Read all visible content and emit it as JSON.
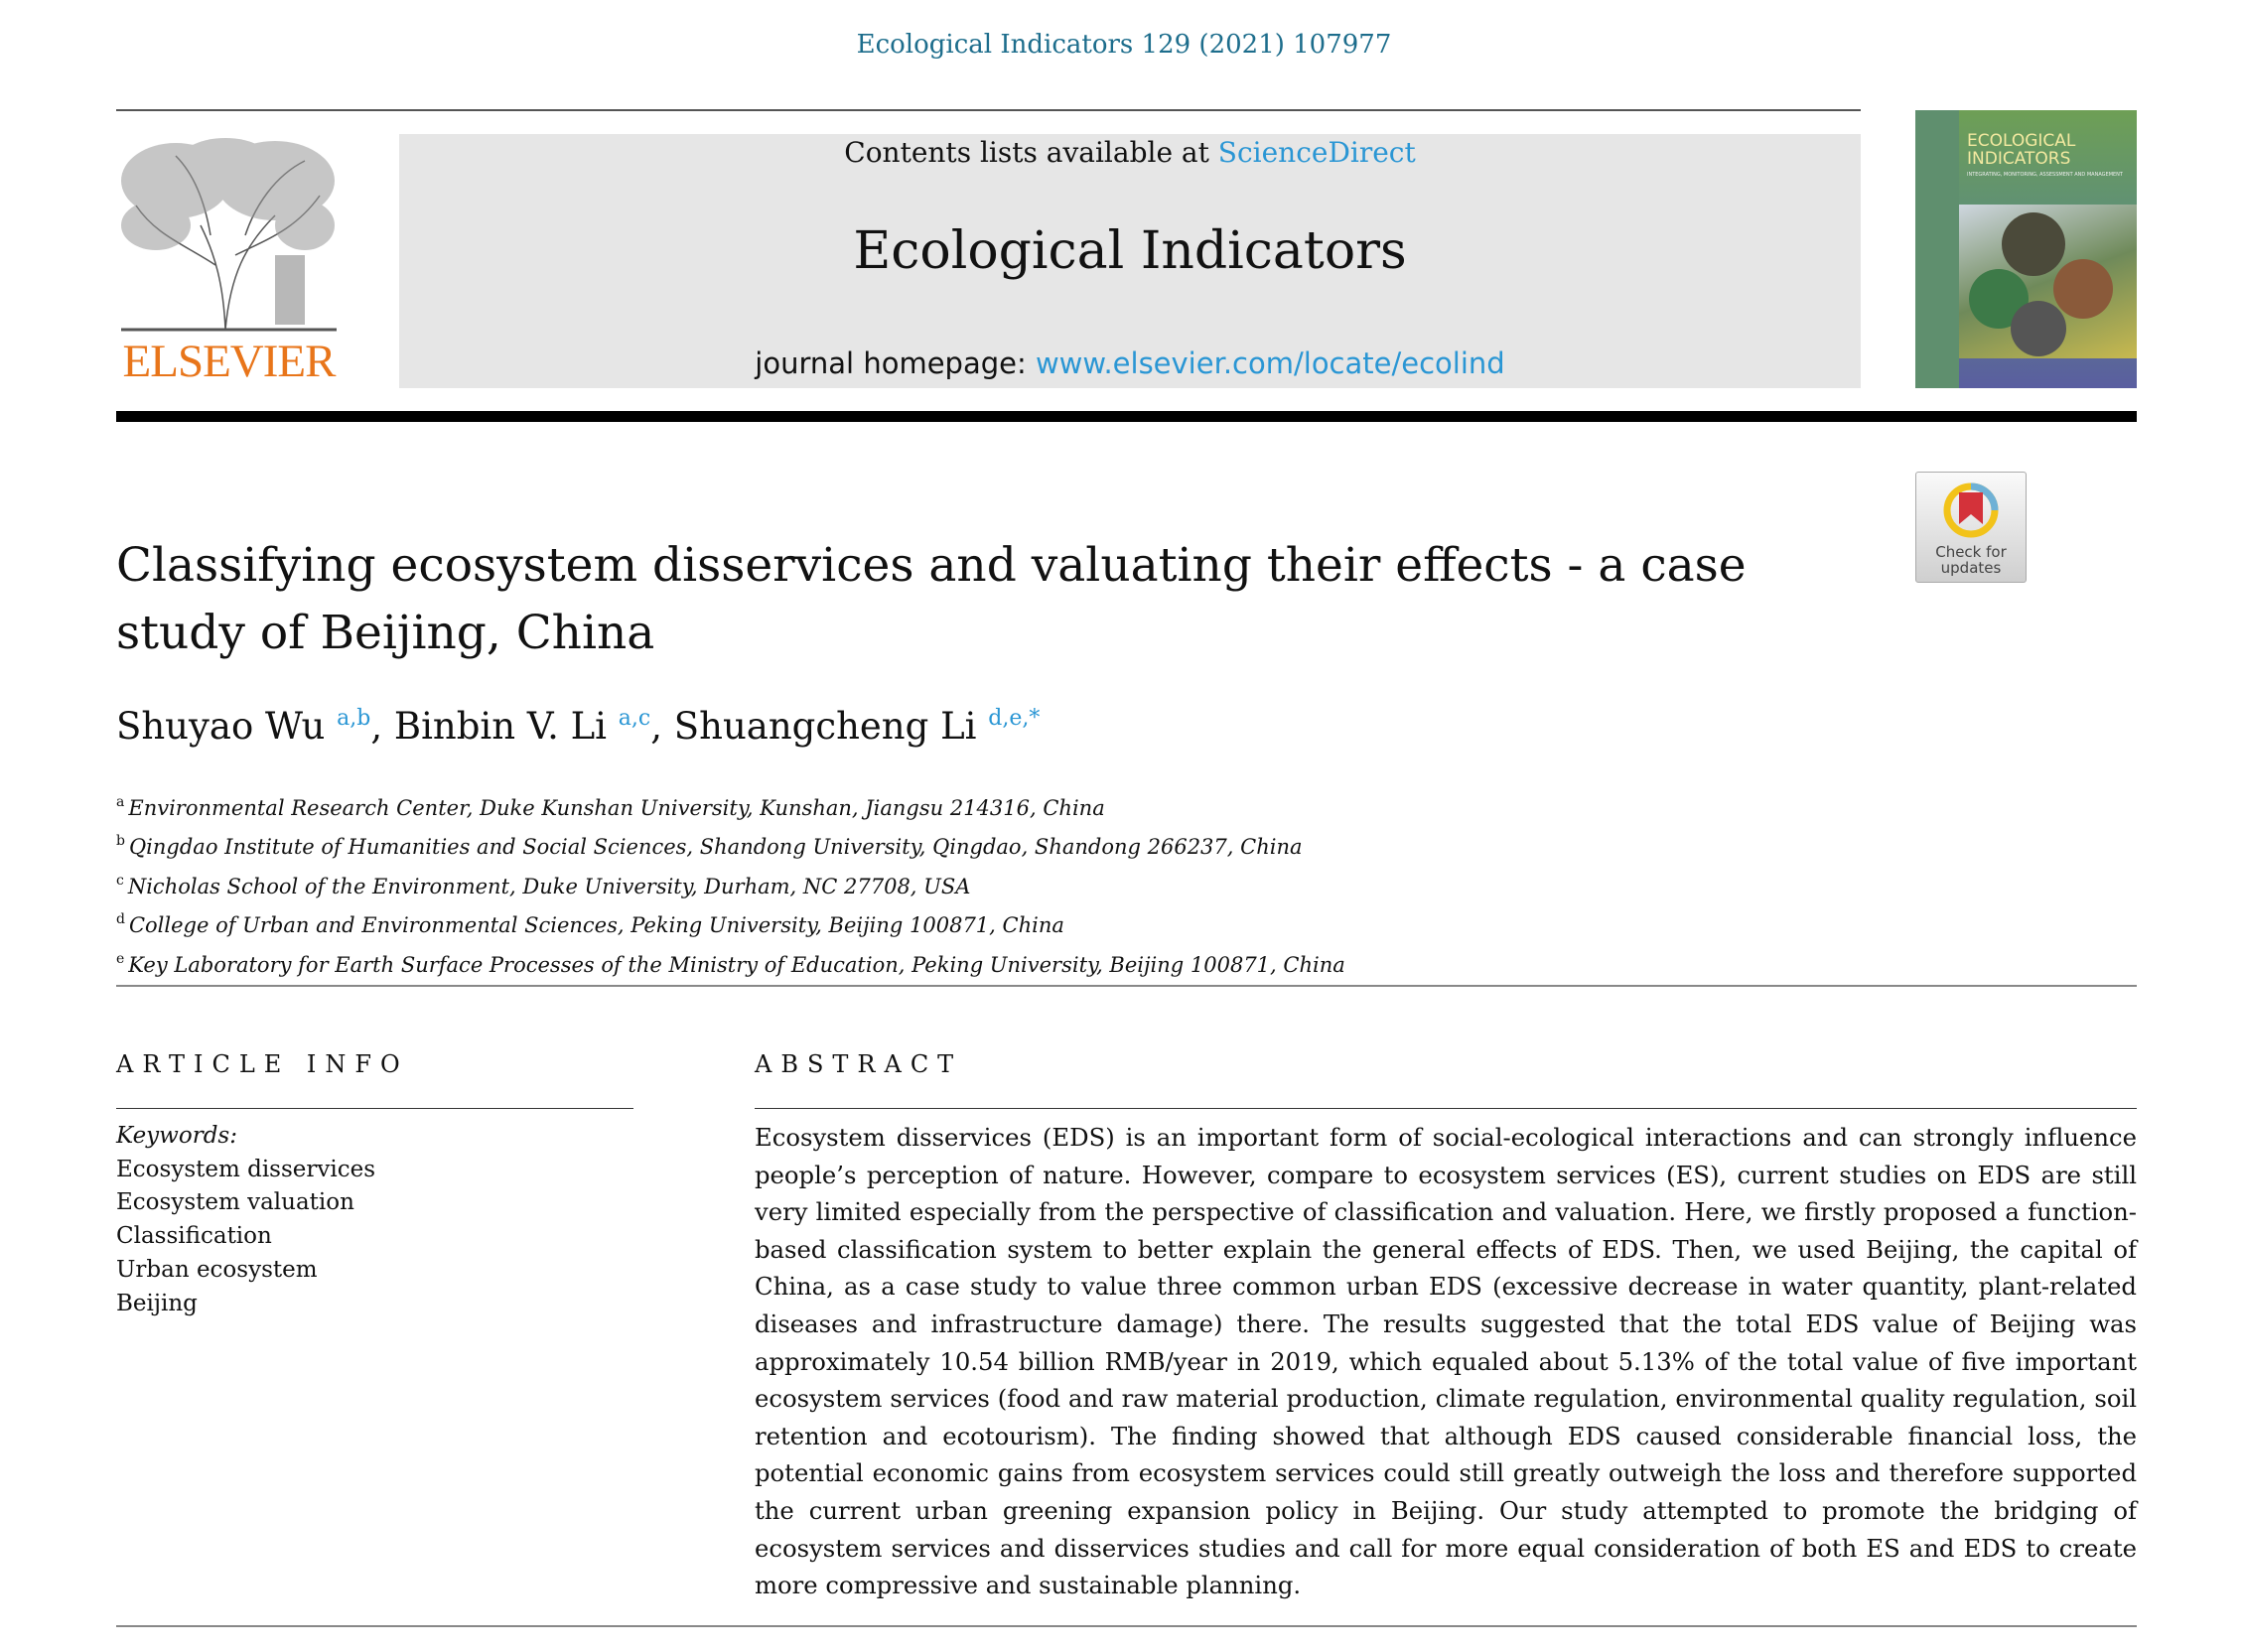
{
  "citation": "Ecological Indicators 129 (2021) 107977",
  "publisher_logo": "ELSEVIER",
  "banner": {
    "contents_prefix": "Contents lists available at ",
    "contents_link": "ScienceDirect",
    "journal_title": "Ecological Indicators",
    "homepage_prefix": "journal homepage: ",
    "homepage_link": "www.elsevier.com/locate/ecolind"
  },
  "cover": {
    "title": "ECOLOGICAL INDICATORS",
    "subtitle": "INTEGRATING, MONITORING, ASSESSMENT AND MANAGEMENT"
  },
  "check_updates": {
    "label": "Check for updates"
  },
  "article": {
    "title": "Classifying ecosystem disservices and valuating their effects - a case study of Beijing, China",
    "authors": [
      {
        "name": "Shuyao Wu",
        "sup": "a,b",
        "sep": ", "
      },
      {
        "name": "Binbin V. Li",
        "sup": "a,c",
        "sep": ", "
      },
      {
        "name": "Shuangcheng Li",
        "sup": "d,e,*",
        "sep": ""
      }
    ],
    "affiliations": [
      {
        "mark": "a",
        "text": "Environmental Research Center, Duke Kunshan University, Kunshan, Jiangsu 214316, China"
      },
      {
        "mark": "b",
        "text": "Qingdao Institute of Humanities and Social Sciences, Shandong University, Qingdao, Shandong 266237, China"
      },
      {
        "mark": "c",
        "text": "Nicholas School of the Environment, Duke University, Durham, NC 27708, USA"
      },
      {
        "mark": "d",
        "text": "College of Urban and Environmental Sciences, Peking University, Beijing 100871, China"
      },
      {
        "mark": "e",
        "text": "Key Laboratory for Earth Surface Processes of the Ministry of Education, Peking University, Beijing 100871, China"
      }
    ]
  },
  "article_info": {
    "heading": "ARTICLE INFO",
    "keywords_label": "Keywords:",
    "keywords": [
      "Ecosystem disservices",
      "Ecosystem valuation",
      "Classification",
      "Urban ecosystem",
      "Beijing"
    ]
  },
  "abstract": {
    "heading": "ABSTRACT",
    "text": "Ecosystem disservices (EDS) is an important form of social-ecological interactions and can strongly influence people’s perception of nature. However, compare to ecosystem services (ES), current studies on EDS are still very limited especially from the perspective of classification and valuation. Here, we firstly proposed a function-based classification system to better explain the general effects of EDS. Then, we used Beijing, the capital of China, as a case study to value three common urban EDS (excessive decrease in water quantity, plant-related diseases and infrastructure damage) there. The results suggested that the total EDS value of Beijing was approximately 10.54 billion RMB/year in 2019, which equaled about 5.13% of the total value of five important ecosystem services (food and raw material production, climate regulation, environmental quality regulation, soil retention and ecotourism). The finding showed that although EDS caused considerable financial loss, the potential economic gains from ecosystem services could still greatly outweigh the loss and therefore supported the current urban greening expansion policy in Beijing. Our study attempted to promote the bridging of ecosystem services and disservices studies and call for more equal consideration of both ES and EDS to create more compressive and sustainable planning."
  },
  "colors": {
    "link": "#2a96d4",
    "citation": "#1d6d8c",
    "elsevier_orange": "#e8751a",
    "banner_bg": "#e6e6e6"
  }
}
